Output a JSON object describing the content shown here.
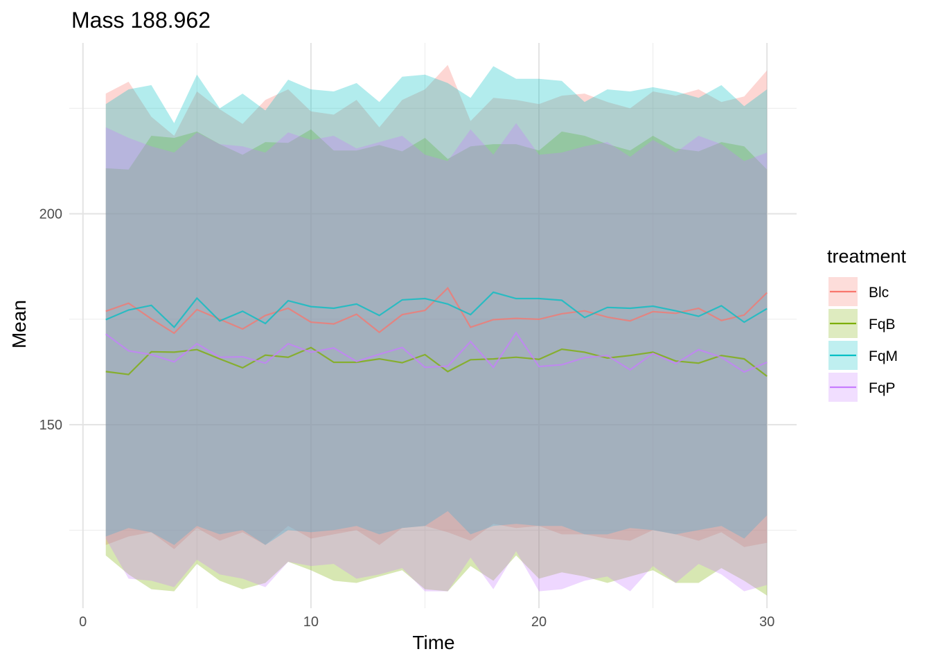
{
  "chart_data": {
    "type": "line",
    "title": "Mass 188.962",
    "xlabel": "Time",
    "ylabel": "Mean",
    "xlim": [
      -0.6,
      31.3
    ],
    "ylim": [
      106.5,
      240.5
    ],
    "x_ticks": [
      0,
      10,
      20,
      30
    ],
    "y_ticks": [
      150,
      200
    ],
    "x_tick_labels": [
      "0",
      "10",
      "20",
      "30"
    ],
    "y_tick_labels": [
      "150",
      "200"
    ],
    "x_minor": [
      5,
      15,
      25
    ],
    "y_minor": [
      125,
      175,
      225
    ],
    "grid": true,
    "legend": {
      "title": "treatment",
      "position": "right"
    },
    "x": [
      1,
      2,
      3,
      4,
      5,
      6,
      7,
      8,
      9,
      10,
      11,
      12,
      13,
      14,
      15,
      16,
      17,
      18,
      19,
      20,
      21,
      22,
      23,
      24,
      25,
      26,
      27,
      28,
      29,
      30
    ],
    "series": [
      {
        "name": "Blc",
        "color": "#F8766D",
        "mean": [
          176.9,
          178.8,
          175.1,
          171.7,
          177.3,
          175.0,
          172.7,
          175.9,
          177.6,
          174.3,
          173.9,
          176.2,
          171.9,
          176.1,
          177.1,
          182.4,
          173.1,
          174.9,
          175.2,
          175.0,
          176.3,
          177.0,
          175.5,
          174.6,
          176.8,
          176.4,
          177.6,
          174.7,
          176.0,
          181.3
        ],
        "upper": [
          228.5,
          231.3,
          223.0,
          218.5,
          229.0,
          224.8,
          221.3,
          227.0,
          229.5,
          224.3,
          223.5,
          227.0,
          220.5,
          227.0,
          229.5,
          235.3,
          222.0,
          227.5,
          227.0,
          226.0,
          228.0,
          228.5,
          226.5,
          225.0,
          229.0,
          228.0,
          229.5,
          226.5,
          227.8,
          234.0
        ],
        "lower": [
          121.5,
          123.5,
          124.5,
          120.5,
          125.5,
          122.5,
          124.5,
          121.5,
          126.0,
          123.0,
          124.0,
          125.0,
          121.5,
          125.5,
          126.0,
          124.5,
          122.5,
          126.5,
          125.5,
          126.0,
          124.0,
          124.0,
          123.0,
          122.5,
          125.0,
          124.0,
          122.5,
          124.5,
          121.0,
          122.0
        ]
      },
      {
        "name": "FqB",
        "color": "#7CAE00",
        "mean": [
          162.6,
          161.9,
          167.3,
          167.2,
          167.8,
          165.6,
          163.5,
          166.5,
          166.0,
          168.3,
          164.8,
          164.8,
          165.6,
          164.7,
          166.6,
          162.6,
          165.4,
          165.6,
          166.0,
          165.5,
          167.9,
          167.2,
          165.8,
          166.4,
          167.2,
          165.1,
          164.6,
          166.4,
          165.6,
          161.5
        ],
        "upper": [
          210.8,
          210.5,
          218.5,
          218.0,
          219.5,
          216.5,
          214.0,
          217.0,
          216.8,
          220.0,
          215.0,
          215.0,
          216.3,
          214.8,
          218.0,
          213.0,
          216.0,
          216.5,
          216.5,
          215.0,
          219.5,
          218.5,
          216.5,
          215.0,
          218.5,
          215.5,
          214.8,
          217.0,
          216.0,
          210.5
        ],
        "lower": [
          119.0,
          114.5,
          111.0,
          110.5,
          117.0,
          113.0,
          111.0,
          112.5,
          117.5,
          115.5,
          113.0,
          112.5,
          114.0,
          115.5,
          111.0,
          110.5,
          116.5,
          113.0,
          119.0,
          113.5,
          115.0,
          114.0,
          112.5,
          114.0,
          115.5,
          112.5,
          112.5,
          116.0,
          113.0,
          109.5
        ]
      },
      {
        "name": "FqM",
        "color": "#00BFC4",
        "mean": [
          174.9,
          177.2,
          178.3,
          173.1,
          180.0,
          174.6,
          176.9,
          174.0,
          179.4,
          178.0,
          177.6,
          178.6,
          175.9,
          179.6,
          179.9,
          178.6,
          176.1,
          181.4,
          179.9,
          179.9,
          179.5,
          175.4,
          177.8,
          177.6,
          178.1,
          177.0,
          175.7,
          178.2,
          174.3,
          177.5
        ],
        "upper": [
          226.0,
          229.5,
          230.5,
          221.5,
          233.0,
          225.0,
          228.5,
          224.5,
          231.8,
          229.5,
          229.0,
          231.0,
          226.5,
          232.5,
          233.0,
          231.0,
          227.5,
          235.0,
          232.0,
          232.0,
          231.5,
          226.5,
          229.5,
          229.0,
          230.0,
          229.0,
          227.5,
          230.5,
          225.5,
          229.5
        ],
        "lower": [
          123.5,
          125.5,
          124.5,
          121.5,
          126.0,
          124.0,
          125.0,
          121.5,
          125.0,
          124.5,
          125.0,
          126.0,
          124.0,
          125.5,
          126.0,
          129.5,
          124.0,
          126.0,
          126.5,
          126.0,
          126.0,
          124.0,
          124.0,
          125.5,
          125.0,
          124.0,
          125.0,
          126.0,
          123.0,
          128.5
        ]
      },
      {
        "name": "FqP",
        "color": "#C77CFF",
        "mean": [
          171.5,
          167.5,
          166.6,
          164.9,
          169.2,
          166.0,
          166.1,
          164.6,
          169.2,
          167.2,
          168.2,
          165.0,
          166.7,
          168.3,
          163.6,
          163.9,
          169.7,
          163.6,
          171.8,
          163.8,
          164.2,
          165.9,
          166.4,
          163.0,
          166.9,
          164.5,
          167.8,
          166.0,
          162.5,
          164.8
        ],
        "upper": [
          220.5,
          218.0,
          216.0,
          214.5,
          219.3,
          216.5,
          216.0,
          214.5,
          219.3,
          217.5,
          218.5,
          215.5,
          217.0,
          218.5,
          214.0,
          212.5,
          220.0,
          214.0,
          221.5,
          214.0,
          214.5,
          216.0,
          217.0,
          213.5,
          217.5,
          214.5,
          218.5,
          216.5,
          212.5,
          214.5
        ],
        "lower": [
          123.0,
          113.5,
          113.0,
          111.5,
          118.0,
          114.5,
          113.5,
          111.5,
          117.5,
          116.5,
          117.0,
          113.5,
          114.5,
          116.0,
          110.5,
          110.5,
          118.5,
          111.0,
          120.0,
          110.5,
          111.0,
          113.0,
          114.0,
          110.5,
          116.5,
          112.5,
          117.0,
          114.5,
          110.5,
          112.0
        ]
      }
    ]
  }
}
